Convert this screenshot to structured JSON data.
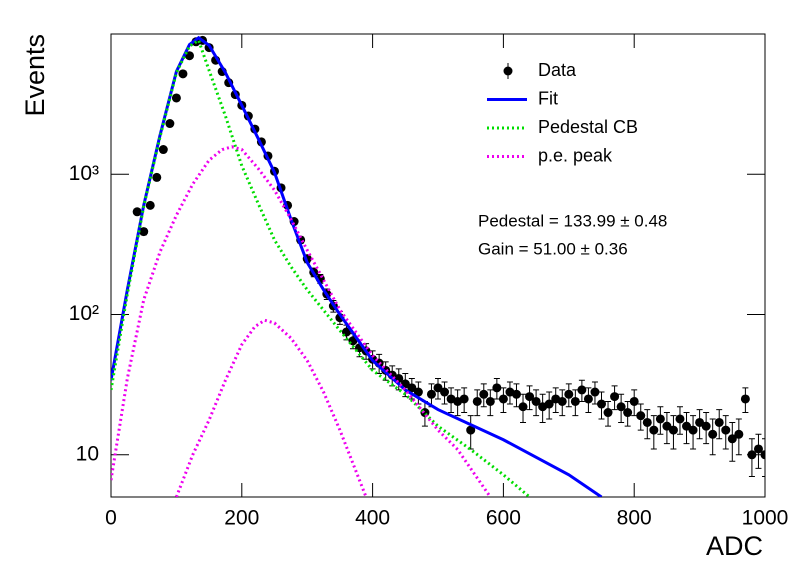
{
  "chart_data": {
    "type": "line",
    "xlabel": "ADC",
    "ylabel": "Events",
    "xlim": [
      0,
      1000
    ],
    "xticks": [
      0,
      200,
      400,
      600,
      800,
      1000
    ],
    "ylim": [
      5,
      10000
    ],
    "log_y": true,
    "yticks": [
      10,
      {
        "value": 100,
        "label": "10²"
      },
      {
        "value": 1000,
        "label": "10³"
      }
    ],
    "legend": "upper right",
    "annotations": [
      "Pedestal = 133.99 ± 0.48",
      "Gain = 51.00 ± 0.36"
    ],
    "series": [
      {
        "name": "Data",
        "color": "#000000",
        "style": "points",
        "x": [
          40,
          50,
          60,
          70,
          80,
          90,
          100,
          110,
          120,
          130,
          140,
          150,
          160,
          170,
          180,
          190,
          200,
          210,
          220,
          230,
          240,
          250,
          260,
          270,
          280,
          290,
          300,
          310,
          320,
          330,
          340,
          350,
          360,
          370,
          380,
          390,
          400,
          410,
          420,
          430,
          440,
          450,
          460,
          470,
          480,
          490,
          500,
          510,
          520,
          530,
          540,
          550,
          560,
          570,
          580,
          590,
          600,
          610,
          620,
          630,
          640,
          650,
          660,
          670,
          680,
          690,
          700,
          710,
          720,
          730,
          740,
          750,
          760,
          770,
          780,
          790,
          800,
          810,
          820,
          830,
          840,
          850,
          860,
          870,
          880,
          890,
          900,
          910,
          920,
          930,
          940,
          950,
          960,
          970,
          980,
          990,
          1000
        ],
        "values": [
          540,
          390,
          600,
          950,
          1500,
          2300,
          3500,
          5200,
          7000,
          8800,
          9000,
          8000,
          6500,
          5400,
          4500,
          3700,
          3100,
          2600,
          2100,
          1700,
          1350,
          1050,
          800,
          600,
          460,
          340,
          250,
          200,
          180,
          140,
          115,
          95,
          75,
          65,
          58,
          55,
          48,
          45,
          40,
          37,
          35,
          32,
          30,
          28,
          20,
          27,
          30,
          28,
          25,
          24,
          25,
          15,
          24,
          27,
          24,
          30,
          25,
          28,
          27,
          22,
          26,
          24,
          22,
          23,
          25,
          24,
          27,
          24,
          29,
          25,
          28,
          23,
          20,
          26,
          22,
          20,
          24,
          19,
          17,
          15,
          18,
          16,
          15,
          18,
          16,
          15,
          17,
          16,
          14,
          17,
          15,
          13,
          14,
          25,
          10,
          11,
          10
        ],
        "errors": [
          23,
          20,
          24,
          31,
          39,
          48,
          59,
          72,
          84,
          94,
          95,
          89,
          81,
          73,
          67,
          61,
          56,
          51,
          46,
          41,
          37,
          32,
          28,
          24,
          21,
          18,
          16,
          14,
          13,
          12,
          11,
          10,
          9,
          8,
          8,
          7,
          7,
          7,
          6,
          6,
          6,
          6,
          5,
          5,
          4,
          5,
          5,
          5,
          5,
          5,
          5,
          4,
          5,
          5,
          5,
          5,
          5,
          5,
          5,
          5,
          5,
          5,
          5,
          5,
          5,
          5,
          5,
          5,
          5,
          5,
          5,
          5,
          4,
          5,
          5,
          4,
          5,
          4,
          4,
          4,
          4,
          4,
          4,
          4,
          4,
          4,
          4,
          4,
          4,
          4,
          4,
          4,
          4,
          5,
          3,
          3,
          3
        ]
      },
      {
        "name": "Fit",
        "color": "#0000ff",
        "style": "solid",
        "x": [
          0,
          25,
          50,
          75,
          100,
          120,
          134,
          150,
          175,
          200,
          225,
          250,
          275,
          300,
          325,
          350,
          400,
          450,
          500,
          600,
          700,
          750
        ],
        "values": [
          34,
          150,
          600,
          1900,
          5400,
          8400,
          9400,
          8300,
          5300,
          3100,
          1800,
          1030,
          480,
          235,
          150,
          100,
          47,
          29,
          21,
          12.8,
          7.2,
          5
        ]
      },
      {
        "name": "Pedestal CB",
        "color": "#00dd00",
        "style": "dotted",
        "x": [
          0,
          25,
          50,
          75,
          100,
          120,
          134,
          150,
          175,
          200,
          225,
          250,
          275,
          300,
          350,
          400,
          450,
          500,
          550,
          600,
          640
        ],
        "values": [
          29,
          140,
          590,
          1850,
          5300,
          8200,
          9000,
          5500,
          2600,
          1150,
          620,
          340,
          220,
          150,
          77,
          40,
          27,
          16,
          10.9,
          7.2,
          5
        ]
      },
      {
        "name": "p.e. peak",
        "color": "#ee00ee",
        "style": "dotted",
        "x": [
          0,
          25,
          50,
          75,
          100,
          125,
          150,
          170,
          185,
          200,
          225,
          250,
          275,
          300,
          350,
          400,
          450,
          500,
          530,
          580,
          null,
          100,
          125,
          150,
          175,
          200,
          220,
          235,
          250,
          275,
          300,
          325,
          350,
          390
        ],
        "values": [
          6.6,
          35,
          127,
          280,
          510,
          850,
          1260,
          1500,
          1570,
          1500,
          1100,
          770,
          480,
          288,
          108,
          51,
          29,
          15,
          10.9,
          5,
          null,
          5,
          10,
          17.7,
          34,
          61,
          82,
          91,
          87,
          68,
          47,
          28,
          15,
          5
        ]
      }
    ]
  }
}
